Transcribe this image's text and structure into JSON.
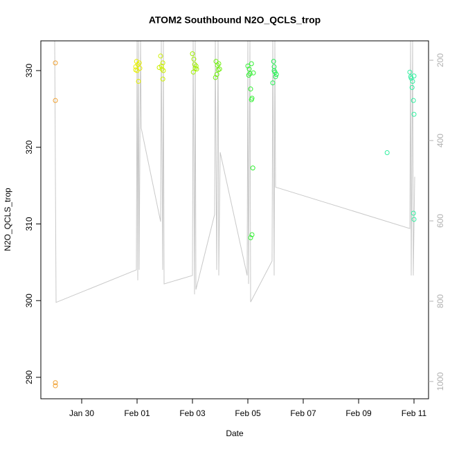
{
  "chart_data": {
    "type": "scatter",
    "title": "ATOM2 Southbound N2O_QCLS_trop",
    "x_label": "Date",
    "y_label": "N2O_QCLS_trop",
    "xlim": [
      28.525,
      42.525
    ],
    "xticks": [
      {
        "value": 30,
        "label": "Jan 30"
      },
      {
        "value": 32,
        "label": "Feb 01"
      },
      {
        "value": 34,
        "label": "Feb 03"
      },
      {
        "value": 36,
        "label": "Feb 05"
      },
      {
        "value": 38,
        "label": "Feb 07"
      },
      {
        "value": 40,
        "label": "Feb 09"
      },
      {
        "value": 42,
        "label": "Feb 11"
      }
    ],
    "ylim": [
      287.2,
      333.88
    ],
    "yticks": [
      290,
      300,
      310,
      320,
      330
    ],
    "y2lim": [
      1043,
      151.7
    ],
    "y2ticks": [
      200,
      400,
      600,
      800,
      1000
    ],
    "y2color": "#b0b0b0",
    "series": [
      {
        "type": "line",
        "axis": "y2",
        "color": "#c8c8c8",
        "x": [
          29.025,
          29.075,
          31.975,
          32.0,
          32.025,
          32.05,
          32.075,
          32.125,
          32.15,
          32.85,
          32.875,
          32.925,
          32.95,
          32.975,
          34.0,
          34.025,
          34.075,
          34.1,
          34.125,
          34.8,
          34.825,
          34.875,
          34.925,
          34.95,
          35.0,
          35.975,
          36.0,
          36.025,
          36.075,
          36.1,
          36.875,
          36.9,
          36.95,
          36.975,
          37.0,
          41.85,
          41.875,
          41.9,
          41.95,
          41.975,
          42.025
        ],
        "values": [
          152,
          803,
          722,
          152,
          748,
          152,
          722,
          152,
          369,
          602,
          152,
          722,
          152,
          757,
          736,
          152,
          783,
          152,
          771,
          584,
          152,
          722,
          152,
          736,
          429,
          736,
          152,
          757,
          152,
          802,
          700,
          152,
          736,
          152,
          516,
          619,
          152,
          736,
          152,
          736,
          490
        ]
      },
      {
        "type": "scatter",
        "color": "#f0a030",
        "x": [
          29.05,
          29.05,
          29.05,
          29.05
        ],
        "values": [
          331.0,
          326.1,
          289.3,
          288.9
        ]
      },
      {
        "type": "scatter",
        "color": "#e6f000",
        "x": [
          31.95,
          31.98,
          32.0,
          32.03,
          32.05,
          32.08,
          32.1,
          31.95
        ],
        "values": [
          330.5,
          331.2,
          330.0,
          330.8,
          328.6,
          331.0,
          330.3,
          330.1
        ]
      },
      {
        "type": "scatter",
        "color": "#ccf000",
        "x": [
          32.85,
          32.88,
          32.9,
          32.93,
          32.95,
          32.93,
          32.8
        ],
        "values": [
          331.9,
          330.6,
          330.2,
          331.0,
          330.0,
          328.9,
          330.4
        ]
      },
      {
        "type": "scatter",
        "color": "#a0f000",
        "x": [
          34.0,
          34.05,
          34.08,
          34.1,
          34.03,
          34.13,
          34.15
        ],
        "values": [
          332.2,
          331.5,
          330.8,
          330.3,
          329.8,
          330.6,
          330.2
        ]
      },
      {
        "type": "scatter",
        "color": "#70f010",
        "x": [
          34.85,
          34.9,
          34.93,
          34.83,
          34.98,
          34.88,
          34.95
        ],
        "values": [
          331.2,
          330.7,
          330.1,
          329.1,
          330.2,
          329.5,
          330.9
        ]
      },
      {
        "type": "scatter",
        "color": "#30f030",
        "x": [
          36.0,
          36.03,
          36.08,
          36.13,
          36.1,
          36.15,
          36.13,
          36.18,
          36.15,
          36.1,
          36.2,
          36.05
        ],
        "values": [
          330.6,
          329.4,
          329.6,
          330.9,
          327.6,
          326.4,
          326.2,
          317.3,
          308.6,
          308.2,
          329.7,
          330.2
        ]
      },
      {
        "type": "scatter",
        "color": "#20f050",
        "x": [
          36.93,
          36.95,
          36.98,
          37.0,
          36.9,
          37.03,
          36.95
        ],
        "values": [
          331.2,
          330.5,
          329.8,
          329.2,
          328.4,
          329.5,
          330.0
        ]
      },
      {
        "type": "scatter",
        "color": "#30f0a0",
        "x": [
          41.03,
          41.85,
          41.9,
          41.95,
          42.0,
          41.93,
          41.98,
          42.0,
          41.98,
          42.0,
          41.88
        ],
        "values": [
          319.3,
          329.8,
          329.0,
          328.6,
          329.3,
          327.8,
          326.1,
          324.3,
          311.4,
          310.6,
          329.2
        ]
      }
    ]
  }
}
